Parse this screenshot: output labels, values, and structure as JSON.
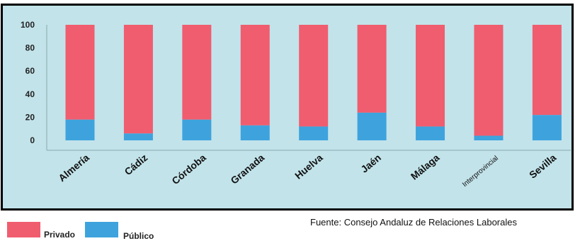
{
  "chart_data": {
    "type": "bar",
    "stacked": true,
    "categories": [
      "Almería",
      "Cádiz",
      "Córdoba",
      "Granada",
      "Huelva",
      "Jaén",
      "Málaga",
      "Interprovincial",
      "Sevilla"
    ],
    "series": [
      {
        "name": "Público",
        "color": "#3ea3dd",
        "values": [
          18,
          6,
          18,
          13,
          12,
          24,
          12,
          4,
          22
        ]
      },
      {
        "name": "Privado",
        "color": "#f05d6f",
        "values": [
          82,
          94,
          82,
          87,
          88,
          76,
          88,
          96,
          78
        ]
      }
    ],
    "y_ticks": [
      "0",
      "20",
      "40",
      "60",
      "80",
      "100"
    ],
    "ylim": [
      0,
      100
    ],
    "grid": false,
    "legend_position": "bottom-left",
    "background_color": "#c2e3ea"
  },
  "legend": {
    "items": [
      {
        "label": "Privado",
        "color": "#f05d6f"
      },
      {
        "label": "Público",
        "color": "#3ea3dd"
      }
    ]
  },
  "source": "Fuente: Consejo Andaluz de Relaciones Laborales"
}
